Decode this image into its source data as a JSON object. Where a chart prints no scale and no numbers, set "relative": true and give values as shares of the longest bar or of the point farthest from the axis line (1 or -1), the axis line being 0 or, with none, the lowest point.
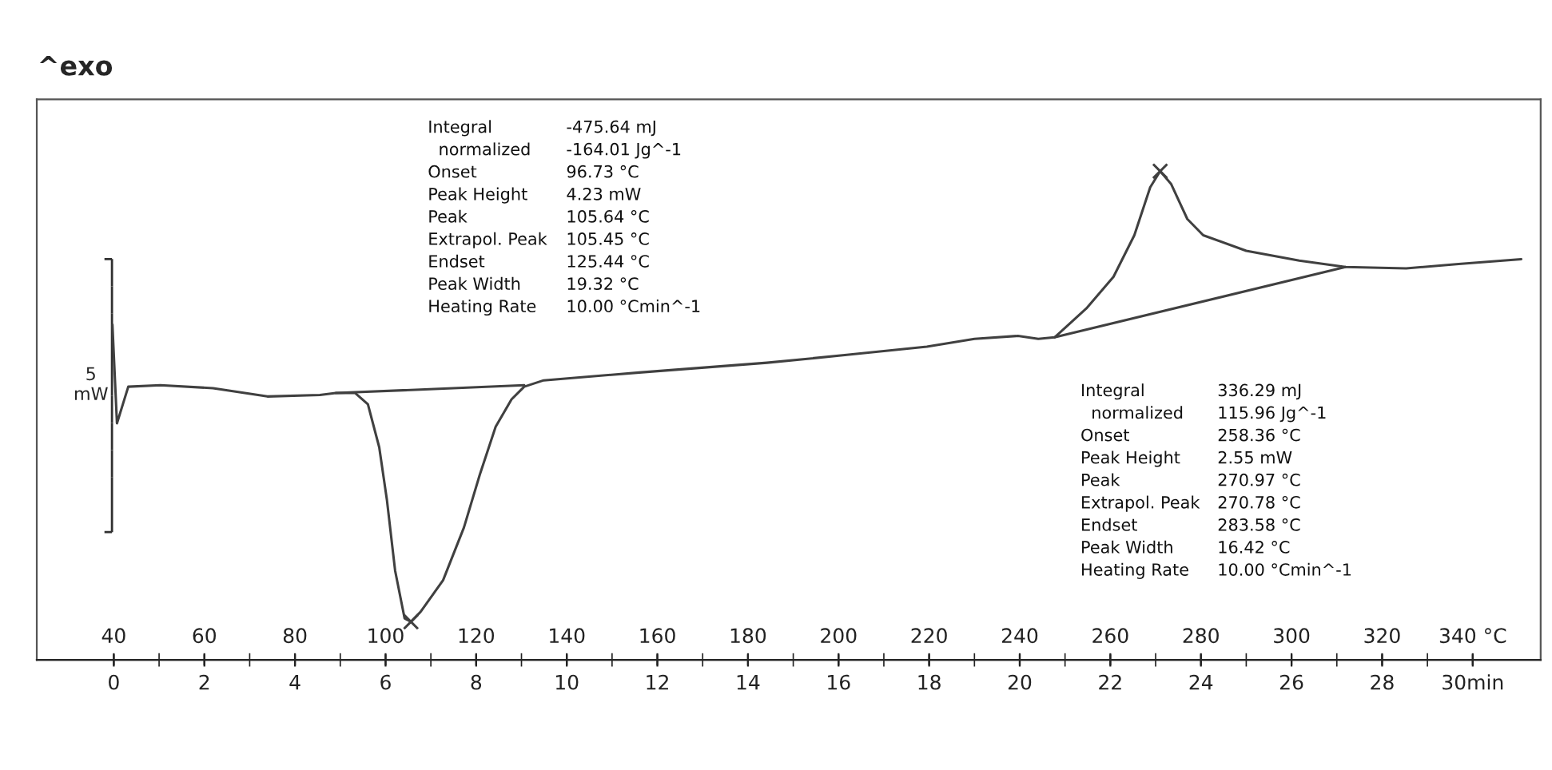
{
  "chart_data": {
    "type": "line",
    "title": "^exo",
    "ylabel": "5\nmW",
    "relative": true,
    "xlim": [
      23,
      355
    ],
    "xticks": [
      40,
      60,
      80,
      100,
      120,
      140,
      160,
      180,
      200,
      220,
      240,
      260,
      280,
      300,
      320,
      {
        "value": 340,
        "label": "340 °C"
      }
    ],
    "x2lim": [
      -1.7,
      31.5
    ],
    "x2ticks": [
      0,
      {
        "value": 1,
        "label": null
      },
      2,
      {
        "value": 3,
        "label": null
      },
      4,
      {
        "value": 5,
        "label": null
      },
      6,
      {
        "value": 7,
        "label": null
      },
      8,
      {
        "value": 9,
        "label": null
      },
      10,
      {
        "value": 11,
        "label": null
      },
      12,
      {
        "value": 13,
        "label": null
      },
      14,
      {
        "value": 15,
        "label": null
      },
      16,
      {
        "value": 17,
        "label": null
      },
      18,
      {
        "value": 19,
        "label": null
      },
      20,
      {
        "value": 21,
        "label": null
      },
      22,
      {
        "value": 23,
        "label": null
      },
      24,
      {
        "value": 25,
        "label": null
      },
      26,
      {
        "value": 27,
        "label": null
      },
      28,
      {
        "value": 29,
        "label": null
      },
      {
        "value": 30,
        "label": "30min"
      }
    ],
    "tick_labels": "x",
    "annotations": [
      "Integral\n  normalized\nOnset\nPeak Height\nPeak\nExtrapol. Peak\nEndset\nPeak Width\nHeating Rate",
      "-475.64 mJ\n-164.01 Jg^-1\n96.73 °C\n4.23 mW\n105.64 °C\n105.45 °C\n125.44 °C\n19.32 °C\n10.00 °Cmin^-1",
      "Integral\n  normalized\nOnset\nPeak Height\nPeak\nExtrapol. Peak\nEndset\nPeak Width\nHeating Rate",
      "336.29 mJ\n115.96 Jg^-1\n258.36 °C\n2.55 mW\n270.97 °C\n270.78 °C\n283.58 °C\n16.42 °C\n10.00 °Cmin^-1"
    ],
    "series": [
      {
        "color": "#404040",
        "x": [
          39.7,
          40.7,
          43.2,
          50.3,
          61.9,
          73.9,
          85.5,
          89.0,
          93.3,
          96.1,
          98.6,
          100.3,
          102.1,
          104.2,
          105.6,
          107.7,
          112.7,
          117.3,
          120.8,
          124.3,
          127.8,
          130.6,
          134.9,
          156.0,
          184.2,
          201.8,
          219.5,
          230.0,
          239.6,
          244.1,
          247.7,
          254.7,
          260.7,
          265.3,
          268.8,
          271.0,
          273.4,
          277.0,
          280.5,
          290.0,
          301.7,
          311.9,
          325.3,
          336.9,
          350.7
        ],
        "values": [
          0.686,
          0.484,
          0.559,
          0.562,
          0.556,
          0.539,
          0.542,
          0.546,
          0.546,
          0.523,
          0.435,
          0.327,
          0.183,
          0.085,
          0.078,
          0.098,
          0.163,
          0.271,
          0.379,
          0.477,
          0.533,
          0.559,
          0.572,
          0.588,
          0.608,
          0.624,
          0.641,
          0.657,
          0.663,
          0.657,
          0.66,
          0.719,
          0.784,
          0.869,
          0.967,
          1.0,
          0.974,
          0.902,
          0.869,
          0.837,
          0.817,
          0.804,
          0.801,
          0.81,
          0.82
        ]
      },
      {
        "color": "#404040",
        "x": [
          89.0,
          130.6
        ],
        "values": [
          0.546,
          0.562
        ]
      },
      {
        "color": "#404040",
        "x": [
          247.7,
          311.9
        ],
        "values": [
          0.66,
          0.804
        ]
      },
      {
        "type": "scatter",
        "marker": "cross",
        "color": "#404040",
        "x": [
          105.6,
          271.0
        ],
        "values": [
          0.078,
          1.0
        ]
      }
    ]
  }
}
